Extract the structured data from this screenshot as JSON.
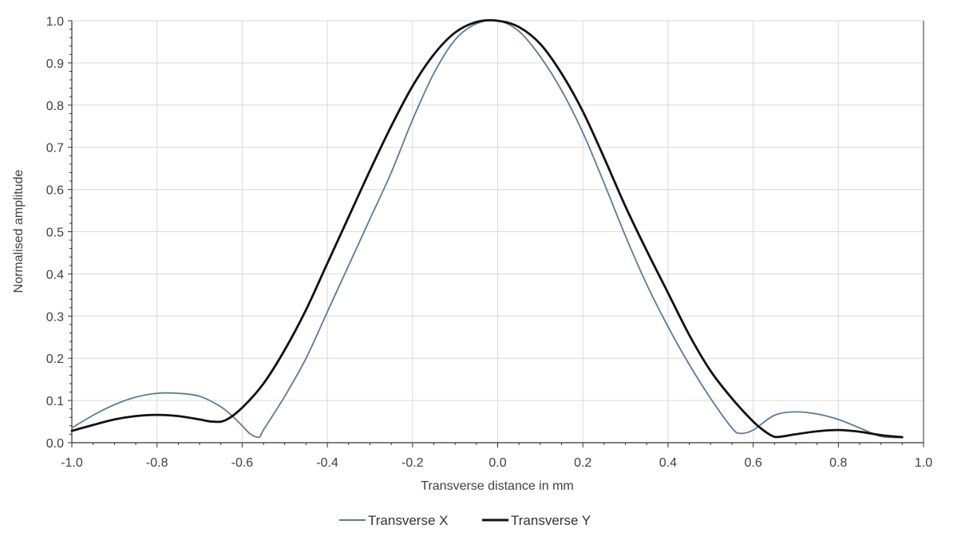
{
  "chart_data": {
    "type": "line",
    "title": "",
    "xlabel": "Transverse distance in mm",
    "ylabel": "Normalised amplitude",
    "xlim": [
      -1.0,
      1.0
    ],
    "ylim": [
      0.0,
      1.0
    ],
    "x_ticks": [
      "-1.0",
      "-0.8",
      "-0.6",
      "-0.4",
      "-0.2",
      "0.0",
      "0.2",
      "0.4",
      "0.6",
      "0.8",
      "1.0"
    ],
    "y_ticks": [
      "0.0",
      "0.1",
      "0.2",
      "0.3",
      "0.4",
      "0.5",
      "0.6",
      "0.7",
      "0.8",
      "0.9",
      "1.0"
    ],
    "grid": true,
    "legend_position": "bottom-center",
    "series": [
      {
        "name": "Transverse X",
        "color": "#5b7a99",
        "x": [
          -1.0,
          -0.95,
          -0.9,
          -0.85,
          -0.8,
          -0.75,
          -0.7,
          -0.65,
          -0.62,
          -0.6,
          -0.58,
          -0.56,
          -0.55,
          -0.5,
          -0.45,
          -0.4,
          -0.35,
          -0.3,
          -0.25,
          -0.2,
          -0.15,
          -0.1,
          -0.05,
          0.0,
          0.05,
          0.1,
          0.15,
          0.2,
          0.25,
          0.3,
          0.35,
          0.4,
          0.45,
          0.5,
          0.55,
          0.57,
          0.6,
          0.65,
          0.7,
          0.75,
          0.8,
          0.85,
          0.9,
          0.95
        ],
        "y": [
          0.035,
          0.065,
          0.09,
          0.108,
          0.117,
          0.117,
          0.11,
          0.085,
          0.06,
          0.04,
          0.02,
          0.013,
          0.03,
          0.11,
          0.2,
          0.31,
          0.42,
          0.53,
          0.64,
          0.765,
          0.875,
          0.955,
          0.993,
          1.0,
          0.975,
          0.915,
          0.835,
          0.735,
          0.615,
          0.49,
          0.375,
          0.275,
          0.185,
          0.105,
          0.035,
          0.022,
          0.03,
          0.065,
          0.073,
          0.068,
          0.055,
          0.035,
          0.015,
          0.012
        ]
      },
      {
        "name": "Transverse Y",
        "color": "#111111",
        "x": [
          -1.0,
          -0.95,
          -0.9,
          -0.85,
          -0.8,
          -0.75,
          -0.7,
          -0.67,
          -0.64,
          -0.6,
          -0.55,
          -0.5,
          -0.45,
          -0.4,
          -0.35,
          -0.3,
          -0.25,
          -0.2,
          -0.15,
          -0.1,
          -0.05,
          0.0,
          0.05,
          0.1,
          0.15,
          0.2,
          0.25,
          0.3,
          0.35,
          0.4,
          0.45,
          0.5,
          0.55,
          0.6,
          0.63,
          0.65,
          0.67,
          0.7,
          0.75,
          0.8,
          0.85,
          0.9,
          0.95
        ],
        "y": [
          0.028,
          0.042,
          0.055,
          0.063,
          0.066,
          0.063,
          0.055,
          0.05,
          0.053,
          0.083,
          0.14,
          0.22,
          0.315,
          0.425,
          0.535,
          0.645,
          0.75,
          0.845,
          0.92,
          0.972,
          0.997,
          1.0,
          0.985,
          0.945,
          0.875,
          0.785,
          0.675,
          0.56,
          0.455,
          0.355,
          0.255,
          0.17,
          0.105,
          0.05,
          0.025,
          0.014,
          0.015,
          0.02,
          0.027,
          0.03,
          0.026,
          0.018,
          0.013
        ]
      }
    ]
  }
}
